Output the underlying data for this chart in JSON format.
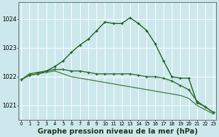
{
  "bg_color": "#cce8ec",
  "grid_color": "#ffffff",
  "xlabel": "Graphe pression niveau de la mer (hPa)",
  "xlabel_fontsize": 7.5,
  "yticks": [
    1021,
    1022,
    1023,
    1024
  ],
  "xticks": [
    0,
    1,
    2,
    3,
    4,
    5,
    6,
    7,
    8,
    9,
    10,
    11,
    12,
    13,
    14,
    15,
    16,
    17,
    18,
    19,
    20,
    21,
    22,
    23
  ],
  "xlim": [
    -0.3,
    23.3
  ],
  "ylim": [
    1020.5,
    1024.6
  ],
  "lines": [
    {
      "x": [
        0,
        1,
        2,
        3,
        4,
        5,
        6,
        7,
        8,
        9,
        10,
        11,
        12,
        13,
        14,
        15,
        16,
        17,
        18,
        19,
        20,
        21,
        22,
        23
      ],
      "y": [
        1021.9,
        1022.05,
        1022.1,
        1022.2,
        1022.35,
        1022.55,
        1022.85,
        1023.1,
        1023.3,
        1023.6,
        1023.9,
        1023.85,
        1023.85,
        1024.05,
        1023.85,
        1023.6,
        1023.15,
        1022.55,
        1022.0,
        1021.95,
        1021.95,
        1021.1,
        1020.95,
        1020.75
      ],
      "color": "#1a5c1a",
      "lw": 1.0,
      "marker": "+"
    },
    {
      "x": [
        0,
        1,
        2,
        3,
        4,
        5,
        6,
        7,
        8,
        9,
        10,
        11,
        12,
        13,
        14,
        15,
        16,
        17,
        18,
        19,
        20,
        21,
        22,
        23
      ],
      "y": [
        1021.9,
        1022.1,
        1022.15,
        1022.2,
        1022.25,
        1022.25,
        1022.2,
        1022.2,
        1022.15,
        1022.1,
        1022.1,
        1022.1,
        1022.1,
        1022.1,
        1022.05,
        1022.0,
        1022.0,
        1021.95,
        1021.85,
        1021.7,
        1021.55,
        1021.15,
        1020.95,
        1020.75
      ],
      "color": "#2d6a2d",
      "lw": 1.0,
      "marker": "+"
    },
    {
      "x": [
        0,
        1,
        2,
        3,
        4,
        5,
        6,
        7,
        8,
        9,
        10,
        11,
        12,
        13,
        14,
        15,
        16,
        17,
        18,
        19,
        20,
        21,
        22,
        23
      ],
      "y": [
        1021.9,
        1022.05,
        1022.1,
        1022.15,
        1022.2,
        1022.1,
        1022.0,
        1021.95,
        1021.9,
        1021.85,
        1021.8,
        1021.75,
        1021.7,
        1021.65,
        1021.6,
        1021.55,
        1021.5,
        1021.45,
        1021.4,
        1021.35,
        1021.25,
        1021.0,
        1020.85,
        1020.7
      ],
      "color": "#3a7a3a",
      "lw": 0.9,
      "marker": null
    }
  ]
}
